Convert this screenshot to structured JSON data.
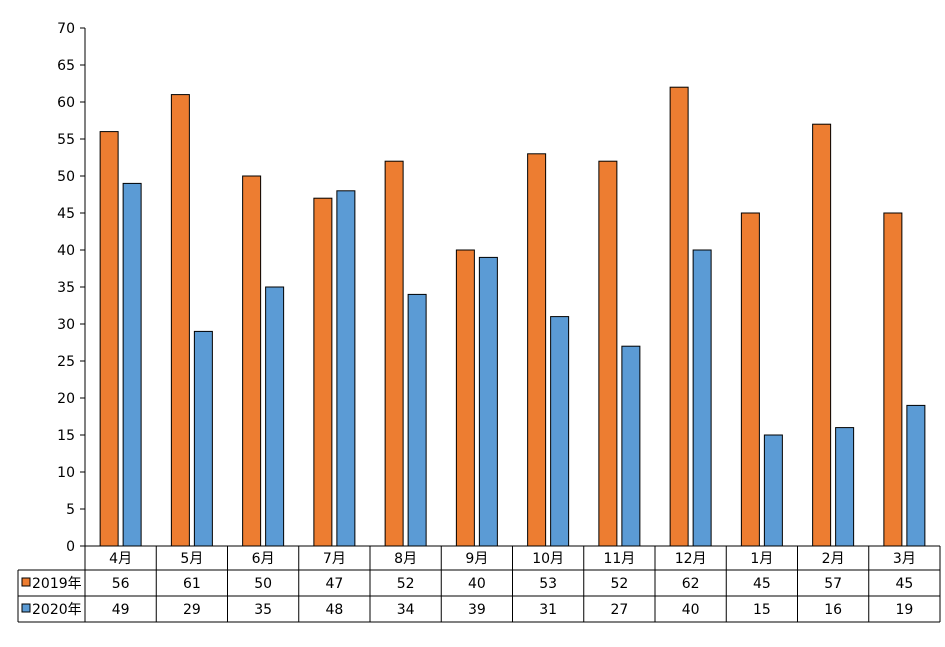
{
  "chart_data": {
    "type": "bar",
    "categories": [
      "4月",
      "5月",
      "6月",
      "7月",
      "8月",
      "9月",
      "10月",
      "11月",
      "12月",
      "1月",
      "2月",
      "3月"
    ],
    "series": [
      {
        "name": "2019年",
        "color": "#ED7D31",
        "values": [
          56,
          61,
          50,
          47,
          52,
          40,
          53,
          52,
          62,
          45,
          57,
          45
        ]
      },
      {
        "name": "2020年",
        "color": "#5B9BD5",
        "values": [
          49,
          29,
          35,
          48,
          34,
          39,
          31,
          27,
          40,
          15,
          16,
          19
        ]
      }
    ],
    "ylim": [
      0,
      70
    ],
    "yticks": [
      0,
      5,
      10,
      15,
      20,
      25,
      30,
      35,
      40,
      45,
      50,
      55,
      60,
      65,
      70
    ],
    "grid": false,
    "legend": "data-table-left",
    "data_table": true
  }
}
